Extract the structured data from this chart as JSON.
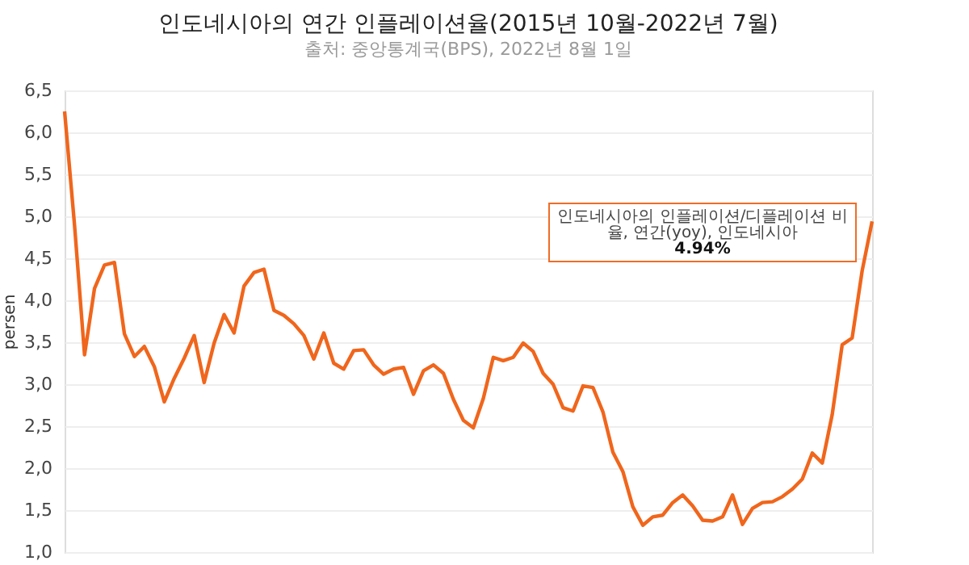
{
  "chart_data": {
    "type": "line",
    "title": "인도네시아의 연간 인플레이션율(2015년 10월-2022년 7월)",
    "subtitle": "출처: 중앙통계국(BPS), 2022년 8월 1일",
    "ylabel": "persen",
    "categories": [
      null,
      null,
      null,
      null,
      null,
      null,
      null,
      null,
      null,
      null,
      null,
      null,
      null,
      null,
      null,
      null,
      null,
      null,
      null,
      null,
      null,
      null,
      null,
      null,
      null,
      null,
      null,
      null,
      null,
      null,
      null,
      null,
      null,
      null,
      null,
      null,
      null,
      null,
      null,
      null,
      null,
      null,
      null,
      null,
      null,
      null,
      null,
      null,
      null,
      null,
      null,
      null,
      null,
      null,
      null,
      null,
      null,
      null,
      null,
      null,
      null,
      null,
      null,
      null,
      null,
      null,
      null,
      null,
      null,
      null,
      null,
      null,
      null,
      null,
      null,
      null,
      null,
      null,
      null,
      null,
      null,
      null
    ],
    "series": [
      {
        "color": "#f0661c",
        "values": [
          6.25,
          4.89,
          3.35,
          4.14,
          4.42,
          4.45,
          3.6,
          3.33,
          3.45,
          3.21,
          2.79,
          3.07,
          3.31,
          3.58,
          3.02,
          3.49,
          3.83,
          3.61,
          4.17,
          4.33,
          4.37,
          3.88,
          3.82,
          3.72,
          3.58,
          3.3,
          3.61,
          3.25,
          3.18,
          3.4,
          3.41,
          3.23,
          3.12,
          3.18,
          3.2,
          2.88,
          3.16,
          3.23,
          3.13,
          2.82,
          2.57,
          2.48,
          2.83,
          3.32,
          3.28,
          3.32,
          3.49,
          3.39,
          3.13,
          3.0,
          2.72,
          2.68,
          2.98,
          2.96,
          2.67,
          2.19,
          1.96,
          1.54,
          1.32,
          1.42,
          1.44,
          1.59,
          1.68,
          1.55,
          1.38,
          1.37,
          1.42,
          1.68,
          1.33,
          1.52,
          1.59,
          1.6,
          1.66,
          1.75,
          1.87,
          2.18,
          2.06,
          2.64,
          3.47,
          3.55,
          4.35,
          4.94
        ]
      }
    ],
    "ylim": [
      1.0,
      6.5
    ],
    "yticks": [
      {
        "value": 1.0,
        "label": "1,0"
      },
      {
        "value": 1.5,
        "label": "1,5"
      },
      {
        "value": 2.0,
        "label": "2,0"
      },
      {
        "value": 2.5,
        "label": "2,5"
      },
      {
        "value": 3.0,
        "label": "3,0"
      },
      {
        "value": 3.5,
        "label": "3,5"
      },
      {
        "value": 4.0,
        "label": "4,0"
      },
      {
        "value": 4.5,
        "label": "4,5"
      },
      {
        "value": 5.0,
        "label": "5,0"
      },
      {
        "value": 5.5,
        "label": "5,5"
      },
      {
        "value": 6.0,
        "label": "6,0"
      },
      {
        "value": 6.5,
        "label": "6,5"
      }
    ],
    "annotations": [
      "인도네시아의 인플레이션/디플레이션 비율, 연간(yoy), 인도네시아",
      "4.94%"
    ],
    "grid": "y",
    "tick_labels": "y"
  }
}
